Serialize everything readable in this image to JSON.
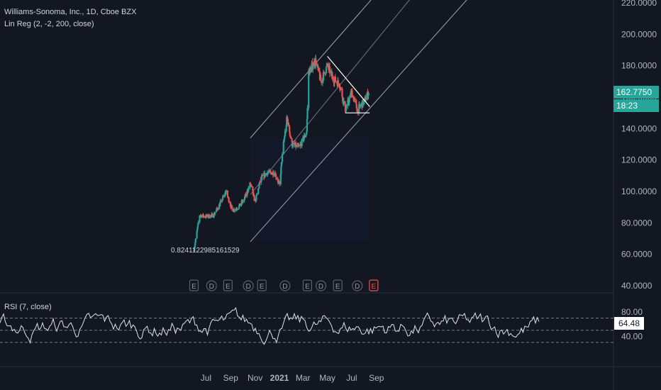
{
  "header": {
    "title": "Williams-Sonoma, Inc., 1D, Cboe BZX",
    "indicator": "Lin Reg (2, -2, 200, close)"
  },
  "price_scale": {
    "last_price": "162.7750",
    "countdown": "18:23"
  },
  "rsi": {
    "label": "RSI (7, close)",
    "current": "64.48"
  },
  "annotation": "0.8241122985161529",
  "colors": {
    "background": "#131722",
    "up": "#26a69a",
    "down": "#ef5350",
    "channel": "#b2b5be",
    "rsi_line": "#e0e3eb",
    "events": "#5d606b",
    "earnings_upcoming": "#ef5350"
  },
  "chart_data": [
    {
      "type": "candlestick",
      "title": "Williams-Sonoma, Inc., 1D, Cboe BZX",
      "y_ticks": [
        "220.0000",
        "200.0000",
        "180.0000",
        "160.0000",
        "140.0000",
        "120.0000",
        "100.0000",
        "80.0000",
        "60.0000",
        "40.0000"
      ],
      "ylim": [
        40,
        220
      ],
      "x_ticks": [
        "Jul",
        "Sep",
        "Nov",
        "2021",
        "Mar",
        "May",
        "Jul",
        "Sep"
      ],
      "approx_close_path": [
        {
          "date": "2020-06-01",
          "close": 63
        },
        {
          "date": "2020-06-15",
          "close": 85
        },
        {
          "date": "2020-07-01",
          "close": 84
        },
        {
          "date": "2020-07-20",
          "close": 85
        },
        {
          "date": "2020-08-05",
          "close": 92
        },
        {
          "date": "2020-08-20",
          "close": 100
        },
        {
          "date": "2020-09-05",
          "close": 88
        },
        {
          "date": "2020-09-20",
          "close": 90
        },
        {
          "date": "2020-10-05",
          "close": 95
        },
        {
          "date": "2020-10-20",
          "close": 105
        },
        {
          "date": "2020-11-01",
          "close": 93
        },
        {
          "date": "2020-11-15",
          "close": 108
        },
        {
          "date": "2020-12-01",
          "close": 112
        },
        {
          "date": "2020-12-20",
          "close": 112
        },
        {
          "date": "2021-01-01",
          "close": 104
        },
        {
          "date": "2021-01-10",
          "close": 128
        },
        {
          "date": "2021-01-20",
          "close": 147
        },
        {
          "date": "2021-02-01",
          "close": 130
        },
        {
          "date": "2021-02-20",
          "close": 128
        },
        {
          "date": "2021-03-10",
          "close": 138
        },
        {
          "date": "2021-03-15",
          "close": 176
        },
        {
          "date": "2021-04-01",
          "close": 183
        },
        {
          "date": "2021-04-15",
          "close": 170
        },
        {
          "date": "2021-05-01",
          "close": 180
        },
        {
          "date": "2021-05-15",
          "close": 172
        },
        {
          "date": "2021-06-01",
          "close": 168
        },
        {
          "date": "2021-06-15",
          "close": 152
        },
        {
          "date": "2021-07-01",
          "close": 163
        },
        {
          "date": "2021-07-15",
          "close": 152
        },
        {
          "date": "2021-08-01",
          "close": 157
        },
        {
          "date": "2021-08-12",
          "close": 162.775
        }
      ],
      "linear_regression_channel": {
        "start": "2020-10-20",
        "end": "2021-08-12",
        "upper_end": 220,
        "middle_end": 190,
        "lower_end": 152,
        "annotation": "0.8241122985161529"
      },
      "triangle_trendlines": {
        "resistance": [
          {
            "date": "2021-05-01",
            "price": 186
          },
          {
            "date": "2021-08-15",
            "price": 154
          }
        ],
        "support": [
          {
            "date": "2021-06-15",
            "price": 150
          },
          {
            "date": "2021-08-15",
            "price": 150
          }
        ]
      },
      "events": [
        {
          "label": "E",
          "date": "2020-06-01"
        },
        {
          "label": "D",
          "date": "2020-07-15"
        },
        {
          "label": "E",
          "date": "2020-08-25"
        },
        {
          "label": "D",
          "date": "2020-10-15"
        },
        {
          "label": "E",
          "date": "2020-11-18"
        },
        {
          "label": "D",
          "date": "2021-01-15"
        },
        {
          "label": "E",
          "date": "2021-03-12"
        },
        {
          "label": "D",
          "date": "2021-04-15"
        },
        {
          "label": "E",
          "date": "2021-05-27"
        },
        {
          "label": "D",
          "date": "2021-07-15"
        },
        {
          "label": "E",
          "date": "2021-08-25"
        }
      ]
    },
    {
      "type": "line",
      "title": "RSI (7, close)",
      "y_ticks": [
        "80.00",
        "40.00"
      ],
      "levels": [
        70,
        50,
        30
      ],
      "last_value": 64.48
    }
  ]
}
